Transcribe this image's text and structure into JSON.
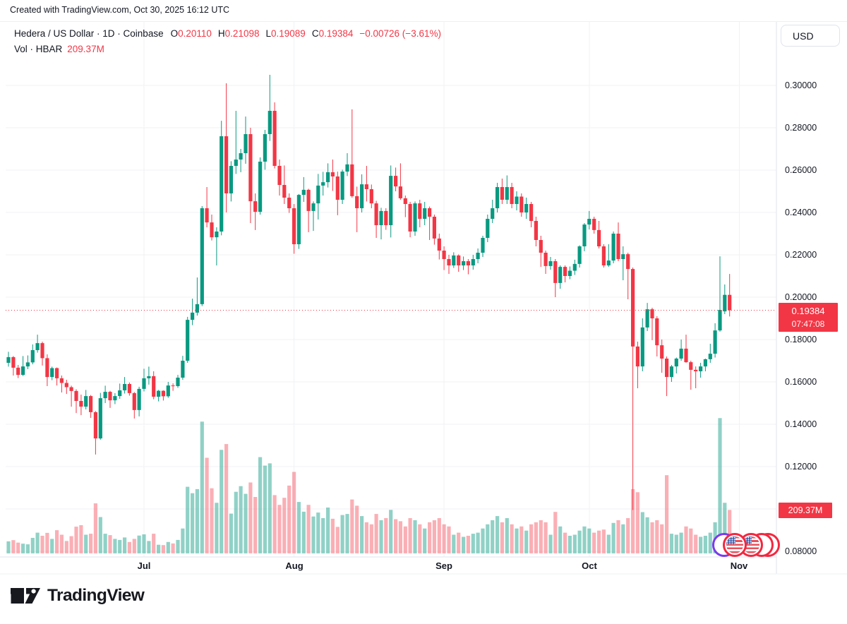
{
  "attribution": "Created with TradingView.com, Oct 30, 2025 16:12 UTC",
  "legend": {
    "title": "Hedera / US Dollar · 1D · Coinbase",
    "o_label": "O",
    "o": "0.20110",
    "h_label": "H",
    "h": "0.21098",
    "l_label": "L",
    "l": "0.19089",
    "c_label": "C",
    "c": "0.19384",
    "change": "−0.00726 (−3.61%)",
    "vol_title": "Vol · HBAR",
    "vol_value": "209.37M"
  },
  "currency_button": "USD",
  "price_axis": {
    "ticks": [
      "0.30000",
      "0.28000",
      "0.26000",
      "0.24000",
      "0.22000",
      "0.20000",
      "0.18000",
      "0.16000",
      "0.14000",
      "0.12000",
      "0.08000"
    ],
    "last_price_label": "0.19384",
    "countdown": "07:47:08",
    "volume_label": "209.37M"
  },
  "time_axis": {
    "months": [
      {
        "label": "Jul",
        "index": 28
      },
      {
        "label": "Aug",
        "index": 59
      },
      {
        "label": "Sep",
        "index": 90
      },
      {
        "label": "Oct",
        "index": 120
      },
      {
        "label": "Nov",
        "index": 151
      }
    ]
  },
  "events": {
    "markers": [
      {
        "type": "purple-ring",
        "name": "event-marker-purple"
      },
      {
        "type": "red-ring",
        "name": "event-marker-us-4"
      },
      {
        "type": "red-ring",
        "name": "event-marker-us-3"
      },
      {
        "type": "us-flag",
        "name": "event-marker-us-2"
      },
      {
        "type": "us-flag",
        "name": "event-marker-us-1"
      }
    ]
  },
  "footer": {
    "brand": "TradingView"
  },
  "colors": {
    "up": "#089981",
    "down": "#f23645",
    "vol_up": "rgba(8,153,129,0.45)",
    "vol_down": "rgba(242,54,69,0.40)",
    "grid": "#f0f2f6",
    "separator": "#e0e3eb",
    "axis_text": "#131722",
    "label_bg": "#f23645",
    "last_price_line": "#f23645"
  },
  "chart_data": {
    "type": "candlestick+volume",
    "symbol": "HBARUSD",
    "pair": "Hedera / US Dollar",
    "exchange": "Coinbase",
    "interval": "1D",
    "quote_currency": "USD",
    "start_date": "2025-06-03",
    "end_date": "2025-10-30",
    "price_scale": {
      "min": 0.08,
      "max": 0.3,
      "tick_step": 0.02
    },
    "volume_unit": "M",
    "last": {
      "open": 0.2011,
      "high": 0.21098,
      "low": 0.19089,
      "close": 0.19384,
      "change": -0.00726,
      "change_pct": -3.61,
      "volume_m": 209.37,
      "countdown": "07:47:08"
    },
    "candles": [
      [
        0.169,
        0.1742,
        0.1672,
        0.1717,
        58
      ],
      [
        0.1717,
        0.1722,
        0.163,
        0.1667,
        64
      ],
      [
        0.1667,
        0.168,
        0.1618,
        0.1633,
        52
      ],
      [
        0.1633,
        0.1722,
        0.1628,
        0.1673,
        47
      ],
      [
        0.1673,
        0.1725,
        0.166,
        0.1692,
        44
      ],
      [
        0.1692,
        0.1777,
        0.1683,
        0.175,
        75
      ],
      [
        0.175,
        0.1823,
        0.1738,
        0.1783,
        100
      ],
      [
        0.1783,
        0.179,
        0.1677,
        0.1712,
        85
      ],
      [
        0.1712,
        0.173,
        0.158,
        0.1623,
        99
      ],
      [
        0.1623,
        0.1672,
        0.1608,
        0.1665,
        70
      ],
      [
        0.1665,
        0.1668,
        0.1583,
        0.1617,
        112
      ],
      [
        0.1617,
        0.163,
        0.155,
        0.1595,
        90
      ],
      [
        0.1595,
        0.161,
        0.1543,
        0.1575,
        60
      ],
      [
        0.1575,
        0.1582,
        0.1483,
        0.1557,
        83
      ],
      [
        0.1557,
        0.1565,
        0.1453,
        0.151,
        129
      ],
      [
        0.151,
        0.154,
        0.1443,
        0.1483,
        136
      ],
      [
        0.1483,
        0.1562,
        0.147,
        0.1533,
        90
      ],
      [
        0.1533,
        0.1538,
        0.143,
        0.1457,
        95
      ],
      [
        0.1457,
        0.1462,
        0.1257,
        0.1333,
        241
      ],
      [
        0.1333,
        0.1548,
        0.1327,
        0.1523,
        175
      ],
      [
        0.1523,
        0.1582,
        0.15,
        0.1553,
        95
      ],
      [
        0.1553,
        0.1558,
        0.1477,
        0.1513,
        88
      ],
      [
        0.1513,
        0.1547,
        0.1495,
        0.1533,
        70
      ],
      [
        0.1533,
        0.1592,
        0.152,
        0.156,
        65
      ],
      [
        0.156,
        0.1623,
        0.1545,
        0.159,
        77
      ],
      [
        0.159,
        0.1597,
        0.1535,
        0.1547,
        55
      ],
      [
        0.1547,
        0.1552,
        0.1427,
        0.1467,
        70
      ],
      [
        0.1467,
        0.1577,
        0.1437,
        0.1567,
        86
      ],
      [
        0.1567,
        0.1662,
        0.1555,
        0.1617,
        92
      ],
      [
        0.1617,
        0.1672,
        0.1587,
        0.1627,
        60
      ],
      [
        0.1627,
        0.165,
        0.1518,
        0.153,
        95
      ],
      [
        0.153,
        0.1562,
        0.1508,
        0.1558,
        42
      ],
      [
        0.1558,
        0.156,
        0.1512,
        0.1532,
        40
      ],
      [
        0.1532,
        0.16,
        0.1525,
        0.1583,
        55
      ],
      [
        0.1583,
        0.1593,
        0.1558,
        0.158,
        48
      ],
      [
        0.158,
        0.1633,
        0.1572,
        0.162,
        65
      ],
      [
        0.162,
        0.1723,
        0.161,
        0.17,
        120
      ],
      [
        0.17,
        0.1907,
        0.169,
        0.1893,
        321
      ],
      [
        0.1893,
        0.1993,
        0.1868,
        0.1927,
        290
      ],
      [
        0.1927,
        0.2093,
        0.1913,
        0.1967,
        310
      ],
      [
        0.1967,
        0.243,
        0.1958,
        0.242,
        635
      ],
      [
        0.242,
        0.252,
        0.233,
        0.2353,
        461
      ],
      [
        0.2353,
        0.239,
        0.2268,
        0.2283,
        314
      ],
      [
        0.2283,
        0.233,
        0.215,
        0.231,
        244
      ],
      [
        0.231,
        0.2833,
        0.2292,
        0.276,
        499
      ],
      [
        0.276,
        0.301,
        0.24,
        0.249,
        527
      ],
      [
        0.249,
        0.2642,
        0.2452,
        0.262,
        192
      ],
      [
        0.262,
        0.288,
        0.2582,
        0.265,
        297
      ],
      [
        0.265,
        0.27,
        0.259,
        0.268,
        324
      ],
      [
        0.268,
        0.2853,
        0.263,
        0.277,
        287
      ],
      [
        0.277,
        0.28,
        0.235,
        0.2453,
        342
      ],
      [
        0.2453,
        0.249,
        0.2317,
        0.2403,
        272
      ],
      [
        0.2403,
        0.266,
        0.239,
        0.264,
        464
      ],
      [
        0.264,
        0.279,
        0.2602,
        0.277,
        423
      ],
      [
        0.277,
        0.305,
        0.2738,
        0.288,
        434
      ],
      [
        0.288,
        0.292,
        0.2608,
        0.262,
        281
      ],
      [
        0.262,
        0.265,
        0.248,
        0.253,
        234
      ],
      [
        0.253,
        0.2622,
        0.244,
        0.247,
        268
      ],
      [
        0.247,
        0.249,
        0.2398,
        0.242,
        327
      ],
      [
        0.242,
        0.244,
        0.2205,
        0.225,
        393
      ],
      [
        0.225,
        0.2487,
        0.2228,
        0.2483,
        248
      ],
      [
        0.2483,
        0.2567,
        0.245,
        0.2507,
        201
      ],
      [
        0.2507,
        0.2512,
        0.2307,
        0.2407,
        234
      ],
      [
        0.2407,
        0.2452,
        0.2313,
        0.2443,
        178
      ],
      [
        0.2443,
        0.2582,
        0.2367,
        0.2527,
        197
      ],
      [
        0.2527,
        0.2592,
        0.248,
        0.2543,
        170
      ],
      [
        0.2543,
        0.2632,
        0.2518,
        0.259,
        221
      ],
      [
        0.259,
        0.265,
        0.2502,
        0.257,
        167
      ],
      [
        0.257,
        0.2593,
        0.2387,
        0.246,
        128
      ],
      [
        0.246,
        0.2602,
        0.244,
        0.2593,
        185
      ],
      [
        0.2593,
        0.268,
        0.2572,
        0.2627,
        190
      ],
      [
        0.2627,
        0.2887,
        0.247,
        0.2477,
        260
      ],
      [
        0.2477,
        0.2522,
        0.2307,
        0.242,
        230
      ],
      [
        0.242,
        0.258,
        0.24,
        0.2533,
        180
      ],
      [
        0.2533,
        0.262,
        0.2452,
        0.251,
        150
      ],
      [
        0.251,
        0.2532,
        0.242,
        0.2443,
        140
      ],
      [
        0.2443,
        0.2455,
        0.228,
        0.234,
        190
      ],
      [
        0.234,
        0.2422,
        0.2273,
        0.2407,
        160
      ],
      [
        0.2407,
        0.242,
        0.2318,
        0.234,
        170
      ],
      [
        0.234,
        0.2622,
        0.2282,
        0.2573,
        210
      ],
      [
        0.2573,
        0.2612,
        0.25,
        0.2523,
        165
      ],
      [
        0.2523,
        0.2632,
        0.246,
        0.2467,
        155
      ],
      [
        0.2467,
        0.248,
        0.2378,
        0.244,
        130
      ],
      [
        0.244,
        0.245,
        0.2283,
        0.231,
        170
      ],
      [
        0.231,
        0.2452,
        0.229,
        0.2443,
        160
      ],
      [
        0.2443,
        0.246,
        0.233,
        0.237,
        140
      ],
      [
        0.237,
        0.245,
        0.234,
        0.242,
        120
      ],
      [
        0.242,
        0.2428,
        0.227,
        0.238,
        150
      ],
      [
        0.238,
        0.239,
        0.2248,
        0.2277,
        160
      ],
      [
        0.2277,
        0.23,
        0.2178,
        0.222,
        170
      ],
      [
        0.222,
        0.224,
        0.2128,
        0.218,
        140
      ],
      [
        0.218,
        0.22,
        0.211,
        0.215,
        130
      ],
      [
        0.215,
        0.2212,
        0.2138,
        0.2197,
        90
      ],
      [
        0.2197,
        0.2202,
        0.212,
        0.215,
        100
      ],
      [
        0.215,
        0.2192,
        0.2128,
        0.217,
        80
      ],
      [
        0.217,
        0.218,
        0.2108,
        0.215,
        85
      ],
      [
        0.215,
        0.22,
        0.213,
        0.218,
        95
      ],
      [
        0.218,
        0.223,
        0.216,
        0.221,
        100
      ],
      [
        0.221,
        0.229,
        0.219,
        0.228,
        120
      ],
      [
        0.228,
        0.239,
        0.226,
        0.237,
        140
      ],
      [
        0.237,
        0.246,
        0.235,
        0.242,
        160
      ],
      [
        0.242,
        0.254,
        0.24,
        0.252,
        180
      ],
      [
        0.252,
        0.256,
        0.244,
        0.246,
        150
      ],
      [
        0.246,
        0.2575,
        0.244,
        0.252,
        170
      ],
      [
        0.252,
        0.254,
        0.242,
        0.244,
        140
      ],
      [
        0.244,
        0.25,
        0.241,
        0.2475,
        120
      ],
      [
        0.2475,
        0.249,
        0.238,
        0.24,
        130
      ],
      [
        0.24,
        0.247,
        0.237,
        0.244,
        110
      ],
      [
        0.244,
        0.245,
        0.233,
        0.236,
        140
      ],
      [
        0.236,
        0.238,
        0.224,
        0.227,
        150
      ],
      [
        0.227,
        0.229,
        0.2143,
        0.221,
        160
      ],
      [
        0.221,
        0.222,
        0.211,
        0.2147,
        150
      ],
      [
        0.2147,
        0.219,
        0.213,
        0.217,
        90
      ],
      [
        0.217,
        0.218,
        0.2,
        0.2067,
        200
      ],
      [
        0.2067,
        0.215,
        0.204,
        0.2143,
        130
      ],
      [
        0.2143,
        0.215,
        0.207,
        0.21,
        100
      ],
      [
        0.21,
        0.2145,
        0.2085,
        0.2125,
        85
      ],
      [
        0.2125,
        0.2177,
        0.2105,
        0.2157,
        90
      ],
      [
        0.2157,
        0.2245,
        0.214,
        0.224,
        110
      ],
      [
        0.224,
        0.235,
        0.2217,
        0.2343,
        130
      ],
      [
        0.2343,
        0.2407,
        0.232,
        0.237,
        120
      ],
      [
        0.237,
        0.238,
        0.23,
        0.2317,
        100
      ],
      [
        0.2317,
        0.236,
        0.223,
        0.224,
        110
      ],
      [
        0.224,
        0.225,
        0.214,
        0.215,
        115
      ],
      [
        0.215,
        0.225,
        0.2143,
        0.2173,
        90
      ],
      [
        0.2173,
        0.231,
        0.216,
        0.23,
        147
      ],
      [
        0.23,
        0.2353,
        0.217,
        0.218,
        160
      ],
      [
        0.218,
        0.224,
        0.208,
        0.2203,
        140
      ],
      [
        0.2203,
        0.221,
        0.199,
        0.2133,
        170
      ],
      [
        0.2133,
        0.214,
        0.0995,
        0.1767,
        310
      ],
      [
        0.1767,
        0.179,
        0.157,
        0.1673,
        295
      ],
      [
        0.1673,
        0.19,
        0.165,
        0.1857,
        199
      ],
      [
        0.1857,
        0.1973,
        0.184,
        0.1943,
        174
      ],
      [
        0.1943,
        0.195,
        0.1797,
        0.19,
        150
      ],
      [
        0.19,
        0.191,
        0.172,
        0.1773,
        160
      ],
      [
        0.1773,
        0.18,
        0.1643,
        0.171,
        140
      ],
      [
        0.171,
        0.172,
        0.1533,
        0.1623,
        377
      ],
      [
        0.1623,
        0.168,
        0.16,
        0.1673,
        95
      ],
      [
        0.1673,
        0.1715,
        0.164,
        0.171,
        90
      ],
      [
        0.171,
        0.18,
        0.17,
        0.1757,
        100
      ],
      [
        0.1757,
        0.1823,
        0.169,
        0.1693,
        130
      ],
      [
        0.1693,
        0.17,
        0.1563,
        0.1657,
        120
      ],
      [
        0.1657,
        0.1673,
        0.157,
        0.165,
        90
      ],
      [
        0.165,
        0.169,
        0.162,
        0.1673,
        80
      ],
      [
        0.1673,
        0.171,
        0.165,
        0.1707,
        85
      ],
      [
        0.1707,
        0.178,
        0.169,
        0.1733,
        100
      ],
      [
        0.1733,
        0.1877,
        0.1715,
        0.1843,
        150
      ],
      [
        0.1843,
        0.2193,
        0.1837,
        0.194,
        652
      ],
      [
        0.1933,
        0.206,
        0.192,
        0.2011,
        244
      ],
      [
        0.2011,
        0.21098,
        0.19089,
        0.19384,
        209.37
      ]
    ]
  }
}
